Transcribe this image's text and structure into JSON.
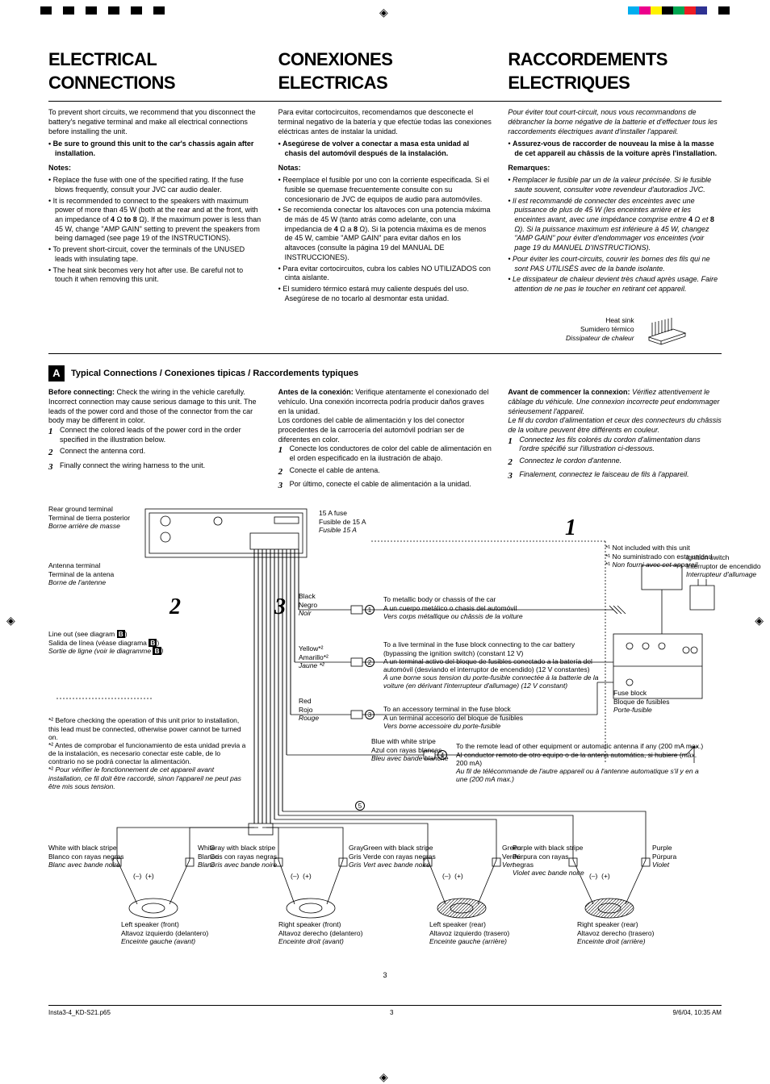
{
  "colorbar_left": [
    "#000000",
    "#ffffff",
    "#000000",
    "#ffffff",
    "#000000",
    "#ffffff",
    "#000000",
    "#ffffff",
    "#000000",
    "#ffffff",
    "#000000"
  ],
  "colorbar_right": [
    "#00aeef",
    "#ec008c",
    "#fff200",
    "#000000",
    "#00a651",
    "#ed1c24",
    "#2e3192",
    "#ffffff",
    "#000000"
  ],
  "headings": {
    "en": "ELECTRICAL CONNECTIONS",
    "es": "CONEXIONES ELECTRICAS",
    "fr": "RACCORDEMENTS ELECTRIQUES"
  },
  "intro": {
    "en": {
      "p1": "To prevent short circuits, we recommend that you disconnect the battery's negative terminal and make all electrical connections before installing the unit.",
      "b1": "Be sure to ground this unit to the car's chassis again after installation.",
      "notes_title": "Notes:",
      "notes": [
        "Replace the fuse with one of the specified rating. If the fuse blows frequently, consult your JVC car audio dealer.",
        "It is recommended to connect to the speakers with maximum power of more than 45 W (both at the rear and at the front, with an impedance of 4 Ω to 8 Ω). If the maximum power is less than 45 W, change \"AMP GAIN\" setting to prevent the speakers from being damaged (see page 19 of the INSTRUCTIONS).",
        "To prevent short-circuit, cover the terminals of the UNUSED leads with insulating tape.",
        "The heat sink becomes very hot after use. Be careful not to touch it when removing this unit."
      ]
    },
    "es": {
      "p1": "Para evitar cortocircuitos, recomendamos que desconecte el terminal negativo de la batería y que efectúe todas las conexiones eléctricas antes de instalar la unidad.",
      "b1": "Asegúrese de volver a conectar a masa esta unidad al chasis del automóvil después de la instalación.",
      "notes_title": "Notas:",
      "notes": [
        "Reemplace el fusible por uno con la corriente especificada. Si el fusible se quemase frecuentemente consulte con su concesionario de JVC de equipos de audio para automóviles.",
        "Se recomienda conectar los altavoces con una potencia máxima de más de 45 W (tanto atrás como adelante, con una impedancia de 4 Ω a 8 Ω). Si la potencia máxima es de menos de 45 W, cambie \"AMP GAIN\" para evitar daños en los altavoces (consulte la página 19 del MANUAL DE INSTRUCCIONES).",
        "Para evitar cortocircuitos, cubra los cables NO UTILIZADOS con cinta aislante.",
        "El sumidero térmico estará muy caliente después del uso. Asegúrese de no tocarlo al desmontar esta unidad."
      ]
    },
    "fr": {
      "p1": "Pour éviter tout court-circuit, nous vous recommandons de débrancher la borne négative de la batterie et d'effectuer tous les raccordements électriques avant d'installer l'appareil.",
      "b1": "Assurez-vous de raccorder de nouveau la mise à la masse de cet appareil au châssis de la voiture après l'installation.",
      "notes_title": "Remarques:",
      "notes": [
        "Remplacer le fusible par un de la valeur précisée. Si le fusible saute souvent, consulter votre revendeur d'autoradios JVC.",
        "Il est recommandé de connecter des enceintes avec une puissance de plus de 45 W (les enceintes arrière et les enceintes avant, avec une impédance comprise entre 4 Ω et 8 Ω). Si la puissance maximum est inférieure à 45 W, changez \"AMP GAIN\" pour éviter d'endommager vos enceintes (voir page 19 du MANUEL D'INSTRUCTIONS).",
        "Pour éviter les court-circuits, couvrir les bornes des fils qui ne sont PAS UTILISÉS avec de la bande isolante.",
        "Le dissipateur de chaleur devient très chaud après usage. Faire attention de ne pas le toucher en retirant cet appareil."
      ]
    }
  },
  "heatsink": {
    "en": "Heat sink",
    "es": "Sumidero térmico",
    "fr": "Dissipateur de chaleur"
  },
  "sectionA": {
    "badge": "A",
    "title": "Typical Connections / Conexiones tipicas / Raccordements typiques"
  },
  "connect": {
    "en": {
      "lead_b": "Before connecting:",
      "lead": " Check the wiring in the vehicle carefully. Incorrect connection may cause serious damage to this unit. The leads of the power cord and those of the connector from the car body may be different in color.",
      "s1": "Connect the colored leads of the power cord in the order specified in the illustration below.",
      "s2": "Connect the antenna cord.",
      "s3": "Finally connect the wiring harness to the unit."
    },
    "es": {
      "lead_b": "Antes de la conexión:",
      "lead": " Verifique atentamente el conexionado del vehículo. Una conexión incorrecta podría producir daños graves en la unidad.",
      "lead2": "Los cordones del cable de alimentación y los del conector procedentes de la carrocería del automóvil podrían ser de diferentes en color.",
      "s1": "Conecte los conductores de color del cable de alimentación en el orden especificado en la ilustración de abajo.",
      "s2": "Conecte el cable de antena.",
      "s3": "Por último, conecte el cable de alimentación a la unidad."
    },
    "fr": {
      "lead_b": "Avant de commencer la connexion:",
      "lead": " Vérifiez attentivement le câblage du véhicule. Une connexion incorrecte peut endommager sérieusement l'appareil.",
      "lead2": "Le fil du cordon d'alimentation et ceux des connecteurs du châssis de la voiture peuvent être différents en couleur.",
      "s1": "Connectez les fils colorés du cordon d'alimentation dans l'ordre spécifié sur l'illustration ci-dessous.",
      "s2": "Connectez le cordon d'antenne.",
      "s3": "Finalement, connectez le faisceau de fils à l'appareil."
    }
  },
  "diagram": {
    "rear_ground": {
      "en": "Rear ground terminal",
      "es": "Terminal de tierra posterior",
      "fr": "Borne arrière de masse"
    },
    "antenna": {
      "en": "Antenna terminal",
      "es": "Terminal de la antena",
      "fr": "Borne de l'antenne"
    },
    "lineout_en": "Line out (see diagram ",
    "lineout_es": "Salida de línea (véase diagrama ",
    "lineout_fr": "Sortie de ligne (voir le diagramme ",
    "B": "B",
    "paren": ")",
    "fuse": {
      "en": "15 A fuse",
      "es": "Fusible de 15 A",
      "fr": "Fusible 15 A"
    },
    "not_included_star": "*¹",
    "not_included": {
      "en": "Not included with this unit",
      "es": "No suministrado con esta unidad",
      "fr": "Non fourni avec cet appareil"
    },
    "ignition": {
      "en": "Ignition switch",
      "es": "Interruptor de encendido",
      "fr": "Interrupteur d'allumage"
    },
    "black": {
      "en": "Black",
      "es": "Negro",
      "fr": "Noir"
    },
    "yellow": {
      "en": "Yellow*²",
      "es": "Amarillo*²",
      "fr": "Jaune *²"
    },
    "red": {
      "en": "Red",
      "es": "Rojo",
      "fr": "Rouge"
    },
    "blue_ws": {
      "en": "Blue with white stripe",
      "es": "Azul con rayas blancas",
      "fr": "Bleu avec bande blanche"
    },
    "w1": {
      "en": "To metallic body or chassis of the car",
      "es": "A un cuerpo metálico o chasis del automóvil",
      "fr": "Vers corps métallique ou châssis de la voiture"
    },
    "w2": {
      "en": "To a live terminal in the fuse block connecting to the car battery (bypassing the ignition switch) (constant 12 V)",
      "es": "A un terminal activo del bloque de fusibles conectado a la batería del automóvil (desviando el interruptor de encendido) (12 V constantes)",
      "fr": "À une borne sous tension du porte-fusible connectée à la batterie de la voiture (en dérivant l'interrupteur d'allumage) (12 V constant)"
    },
    "w3": {
      "en": "To an accessory terminal in the fuse block",
      "es": "A un terminal accesorio del bloque de fusibles",
      "fr": "Vers borne accessoire du porte-fusible"
    },
    "w4": {
      "en": "To the remote lead of other equipment or automatic antenna if any (200 mA max.)",
      "es": "Al conductor remoto de otro equipo o de la antena automática, si hubiere (máx. 200 mA)",
      "fr": "Au fil de télécommande de l'autre appareil ou à l'antenne automatique s'il y en a une (200 mA max.)"
    },
    "fuseblock": {
      "en": "Fuse block",
      "es": "Bloque de fusibles",
      "fr": "Porte-fusible"
    },
    "note2_en": "Before checking the operation of this unit prior to installation, this lead must be connected, otherwise power cannot be turned on.",
    "note2_es": "Antes de comprobar el funcionamiento de esta unidad previa a de la instalación, es necesario conectar este cable, de lo contrario no se podrá conectar la alimentación.",
    "note2_fr": "Pour vérifier le fonctionnement de cet appareil avant installation, ce fil doit être raccordé, sinon l'appareil ne peut pas être mis sous tension.",
    "star2": "*²",
    "speakers": {
      "wbs": {
        "en": "White with black stripe",
        "es": "Blanco con rayas negras",
        "fr": "Blanc avec bande noire"
      },
      "w": {
        "en": "White",
        "es": "Blanco",
        "fr": "Blanc"
      },
      "gbs": {
        "en": "Gray with black stripe",
        "es": "Gris con rayas negras",
        "fr": "Gris avec bande noire"
      },
      "g": {
        "en": "Gray",
        "es": "Gris",
        "fr": "Gris"
      },
      "grbs": {
        "en": "Green with black stripe",
        "es": "Verde con rayas negras",
        "fr": "Vert avec bande noire"
      },
      "gr": {
        "en": "Green",
        "es": "Verde",
        "fr": "Vert"
      },
      "pbs": {
        "en": "Purple with black stripe",
        "es": "Púrpura con rayas negras",
        "fr": "Violet avec bande noire"
      },
      "p": {
        "en": "Purple",
        "es": "Púrpura",
        "fr": "Violet"
      },
      "lf": {
        "en": "Left speaker (front)",
        "es": "Altavoz izquierdo (delantero)",
        "fr": "Enceinte gauche (avant)"
      },
      "rf": {
        "en": "Right speaker (front)",
        "es": "Altavoz derecho (delantero)",
        "fr": "Enceinte droit (avant)"
      },
      "lr": {
        "en": "Left speaker (rear)",
        "es": "Altavoz izquierdo (trasero)",
        "fr": "Enceinte gauche (arrière)"
      },
      "rr": {
        "en": "Right speaker (rear)",
        "es": "Altavoz derecho (trasero)",
        "fr": "Enceinte droit (arrière)"
      }
    },
    "minus": "(–)",
    "plus": "(+)",
    "c1": "1",
    "c2": "2",
    "c3": "3",
    "c4": "4",
    "c5": "5"
  },
  "pagenum": "3",
  "footer": {
    "left": "Insta3-4_KD-S21.p65",
    "mid": "3",
    "right": "9/6/04, 10:35 AM"
  }
}
